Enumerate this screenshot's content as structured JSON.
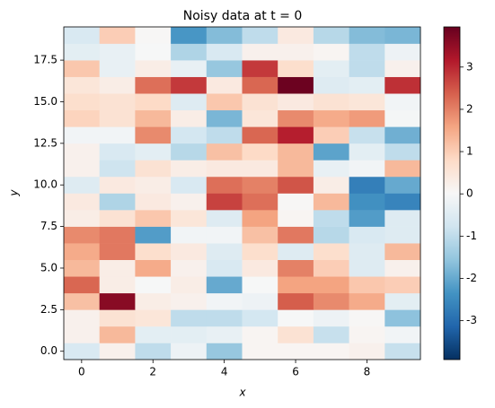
{
  "chart_data": {
    "type": "heatmap",
    "title": "Noisy data at t = 0",
    "x_label": "x",
    "y_label": "y",
    "xlim": [
      -0.5,
      9.5
    ],
    "ylim": [
      -0.5,
      19.5
    ],
    "xticks": [
      0,
      2,
      4,
      6,
      8
    ],
    "yticks": [
      {
        "value": 0,
        "label": "0.0"
      },
      2.5,
      {
        "value": 5,
        "label": "5.0"
      },
      7.5,
      {
        "value": 10,
        "label": "10.0"
      },
      12.5,
      {
        "value": 15,
        "label": "15.0"
      },
      17.5
    ],
    "zlim": [
      -3.92,
      3.95
    ],
    "zticks": [
      -3,
      -2,
      -1,
      0,
      1,
      2,
      3
    ],
    "colorscale": [
      "#053061",
      "#2166ac",
      "#4393c3",
      "#92c5de",
      "#d1e5f0",
      "#f7f7f7",
      "#fddbc7",
      "#f4a582",
      "#d6604d",
      "#b2182b",
      "#67001f"
    ],
    "z": [
      [
        -0.6,
        0.2,
        -1.0,
        -0.2,
        -1.5,
        0.1,
        0.1,
        0.1,
        0.2,
        -0.9
      ],
      [
        0.2,
        1.3,
        -0.4,
        -0.4,
        -0.3,
        0.1,
        0.6,
        -0.9,
        0.1,
        -0.1
      ],
      [
        0.2,
        0.6,
        0.5,
        -1.0,
        -1.0,
        -0.7,
        0,
        -0.2,
        0.05,
        -1.6
      ],
      [
        1.2,
        3.6,
        0.3,
        0.2,
        -0.1,
        -0.2,
        2.4,
        1.9,
        1.5,
        -0.4
      ],
      [
        2.3,
        0.3,
        0,
        0.3,
        -2.0,
        0,
        1.6,
        1.6,
        1.1,
        1.0
      ],
      [
        1.3,
        0.3,
        1.5,
        0.2,
        -0.6,
        0.4,
        2.0,
        1.0,
        -0.5,
        0.2
      ],
      [
        1.5,
        2.1,
        0.7,
        0.4,
        -0.5,
        0.7,
        -0.5,
        0.7,
        -0.5,
        1.3
      ],
      [
        1.9,
        2.1,
        -2.2,
        -0.1,
        -0.1,
        1.2,
        2.1,
        -1.1,
        -0.6,
        -0.5
      ],
      [
        0.3,
        0.6,
        1.1,
        0.5,
        -0.5,
        1.6,
        0.1,
        -1.0,
        -2.2,
        -0.5
      ],
      [
        0.4,
        -1.2,
        0.4,
        0.2,
        2.7,
        2.2,
        0.05,
        1.3,
        -2.4,
        -2.6
      ],
      [
        -0.5,
        0.4,
        0.3,
        -0.6,
        2.2,
        2.0,
        2.5,
        0.3,
        -2.7,
        -2.0
      ],
      [
        0.2,
        -0.8,
        0.6,
        0.3,
        0.4,
        0.4,
        1.3,
        -0.3,
        -0.1,
        1.3
      ],
      [
        0.2,
        -0.6,
        -0.4,
        -1.1,
        1.2,
        0.8,
        1.3,
        -2.1,
        -0.4,
        -1.0
      ],
      [
        -0.1,
        -0.1,
        1.9,
        -0.7,
        -1.0,
        2.3,
        3.1,
        1.0,
        -0.9,
        -1.9
      ],
      [
        0.9,
        0.6,
        1.3,
        0.3,
        -1.8,
        0.5,
        1.9,
        1.5,
        1.7,
        -0.05
      ],
      [
        0.7,
        0.6,
        0.8,
        -0.5,
        1.1,
        0.6,
        0.4,
        0.6,
        0.5,
        -0.1
      ],
      [
        0.5,
        0.3,
        2.2,
        2.8,
        0.4,
        2.3,
        3.9,
        -0.5,
        -0.4,
        2.9
      ],
      [
        1.1,
        -0.3,
        0.3,
        -0.3,
        -1.5,
        2.8,
        0.7,
        -0.4,
        -1.0,
        0.2
      ],
      [
        -0.4,
        -0.3,
        0.0,
        -1.2,
        -0.6,
        0.2,
        0.2,
        0.1,
        -1.0,
        -0.2
      ],
      [
        -0.6,
        1.0,
        0.05,
        -2.3,
        -1.7,
        -1.0,
        0.4,
        -1.1,
        -1.7,
        -1.8
      ]
    ]
  }
}
